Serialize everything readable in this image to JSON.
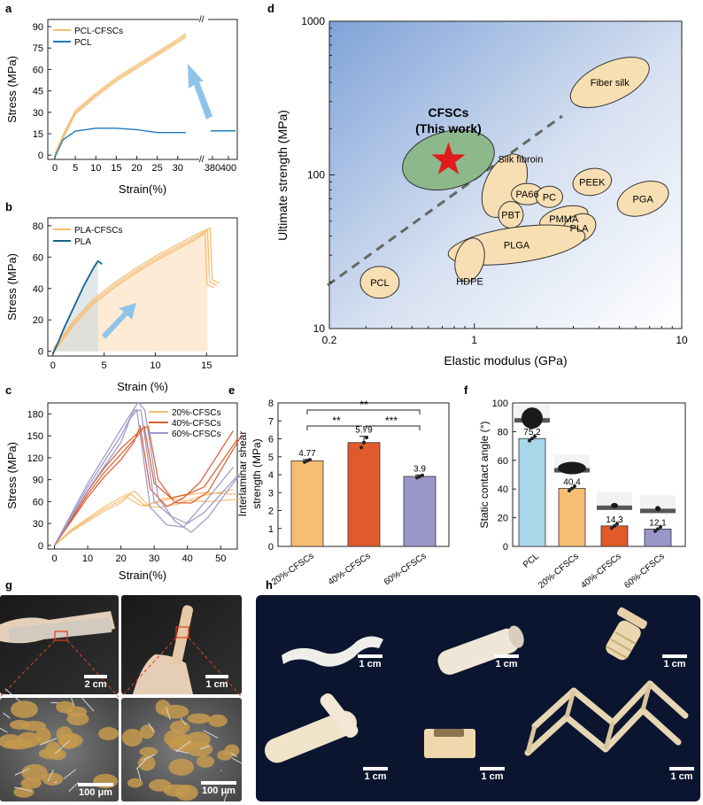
{
  "panel_letters": {
    "a": "a",
    "b": "b",
    "c": "c",
    "d": "d",
    "e": "e",
    "f": "f",
    "g": "g",
    "h": "h"
  },
  "colors": {
    "orange": "#f7bd73",
    "blue_a": "#1e7bbf",
    "blue_b": "#15668f",
    "arrow": "#8fc3ea",
    "red": "#e05a2b",
    "purple": "#9a96c8",
    "lightblue": "#aad6ea",
    "star": "#e11b1b",
    "dark_bg": "#0c1530"
  },
  "scale_bars": {
    "g1": "2 cm",
    "g2": "1 cm",
    "g3": "100 μm",
    "g4": "100 μm",
    "h": "1 cm"
  },
  "chart_data": [
    {
      "id": "a",
      "type": "line",
      "xlabel": "Strain(%)",
      "ylabel": "Stress (MPa)",
      "yticks": [
        0,
        15,
        30,
        45,
        60,
        75,
        90
      ],
      "xticks": [
        "0",
        "5",
        "10",
        "15",
        "20",
        "25",
        "30",
        "380",
        "400"
      ],
      "ylim": [
        -3,
        95
      ],
      "series": [
        {
          "name": "PCL-CFSCs",
          "color": "#f7bd73",
          "x": [
            0,
            2,
            5,
            10,
            15,
            20,
            25,
            30,
            32
          ],
          "y": [
            0,
            13,
            30,
            42,
            53,
            62,
            71,
            80,
            84
          ]
        },
        {
          "name": "PCL",
          "color": "#1e7bbf",
          "x": [
            0,
            2,
            5,
            10,
            15,
            20,
            25,
            30,
            32,
            400
          ],
          "y": [
            0,
            12,
            18,
            20,
            20,
            19,
            17,
            17,
            17,
            17
          ]
        }
      ]
    },
    {
      "id": "b",
      "type": "line",
      "xlabel": "Strain (%)",
      "ylabel": "Stress (MPa)",
      "xticks": [
        0,
        5,
        10,
        15
      ],
      "yticks": [
        0,
        20,
        40,
        60,
        80
      ],
      "xlim": [
        -0.5,
        18
      ],
      "ylim": [
        -3,
        85
      ],
      "series": [
        {
          "name": "PLA-CFSCs",
          "color": "#f7bd73",
          "x": [
            0,
            1,
            2,
            4,
            6,
            8,
            10,
            12,
            14,
            15.1,
            15.3,
            16
          ],
          "y": [
            0,
            9,
            18,
            32,
            42,
            51,
            59,
            66,
            73,
            77,
            44,
            42
          ]
        },
        {
          "name": "PLA",
          "color": "#15668f",
          "x": [
            0,
            0.5,
            1,
            2,
            3,
            4,
            4.4,
            4.8
          ],
          "y": [
            0,
            7,
            15,
            29,
            43,
            55,
            59,
            57
          ]
        }
      ]
    },
    {
      "id": "c",
      "type": "line",
      "xlabel": "Strain(%)",
      "ylabel": "Stress (MPa)",
      "xticks": [
        0,
        10,
        20,
        30,
        40,
        50
      ],
      "yticks": [
        0,
        30,
        60,
        90,
        120,
        150,
        180
      ],
      "xlim": [
        -2,
        55
      ],
      "ylim": [
        -5,
        195
      ],
      "series": [
        {
          "name": "20%-CFSCs",
          "color": "#f7bd73",
          "x": [
            0,
            5,
            10,
            15,
            20,
            23,
            27,
            32,
            38,
            45,
            55
          ],
          "y": [
            0,
            20,
            35,
            50,
            62,
            70,
            55,
            60,
            68,
            72,
            70
          ]
        },
        {
          "name": "40%-CFSCs",
          "color": "#e05a2b",
          "x": [
            0,
            5,
            10,
            15,
            20,
            25,
            27,
            30,
            35,
            40,
            45,
            55
          ],
          "y": [
            0,
            35,
            70,
            100,
            125,
            150,
            163,
            85,
            65,
            70,
            80,
            145
          ]
        },
        {
          "name": "60%-CFSCs",
          "color": "#9a96c8",
          "x": [
            0,
            5,
            10,
            15,
            20,
            24,
            26,
            30,
            35,
            40,
            45,
            55
          ],
          "y": [
            0,
            40,
            80,
            115,
            150,
            185,
            185,
            60,
            40,
            30,
            45,
            95
          ]
        }
      ]
    },
    {
      "id": "d",
      "type": "scatter",
      "xlabel": "Elastic modulus (GPa)",
      "ylabel": "Ultimate strength (MPa)",
      "xscale": "log",
      "yscale": "log",
      "xticks": [
        "0.2",
        "1",
        "10"
      ],
      "yticks": [
        "10",
        "100",
        "1000"
      ],
      "xlim": [
        0.2,
        10
      ],
      "ylim": [
        10,
        1000
      ],
      "materials": [
        {
          "name": "Fiber silk",
          "x": 4.5,
          "y": 400
        },
        {
          "name": "CFSCs\n(This work)",
          "x": 0.75,
          "y": 125
        },
        {
          "name": "Silk fibroin",
          "x": 1.4,
          "y": 85
        },
        {
          "name": "PA66",
          "x": 1.8,
          "y": 75
        },
        {
          "name": "PC",
          "x": 2.3,
          "y": 72
        },
        {
          "name": "PEEK",
          "x": 3.7,
          "y": 90
        },
        {
          "name": "PBT",
          "x": 1.5,
          "y": 55
        },
        {
          "name": "PMMA",
          "x": 2.7,
          "y": 52
        },
        {
          "name": "PGA",
          "x": 6.5,
          "y": 70
        },
        {
          "name": "PLA",
          "x": 3.2,
          "y": 45
        },
        {
          "name": "PLGA",
          "x": 1.6,
          "y": 35
        },
        {
          "name": "HDPE",
          "x": 0.95,
          "y": 28
        },
        {
          "name": "PCL",
          "x": 0.35,
          "y": 20
        }
      ],
      "this_work_title": "CFSCs",
      "this_work_sub": "(This work)"
    },
    {
      "id": "e",
      "type": "bar",
      "ylabel": "Interlaminar shear strength (MPa)",
      "categories": [
        "20%-CFSCs",
        "40%-CFSCs",
        "60%-CFSCs"
      ],
      "values": [
        4.77,
        5.79,
        3.9
      ],
      "value_labels": [
        "4.77",
        "5.79",
        "3.9"
      ],
      "colors": [
        "#f7bd73",
        "#e05a2b",
        "#9a96c8"
      ],
      "yticks": [
        0,
        1,
        2,
        3,
        4,
        5,
        6,
        7,
        8
      ],
      "ylim": [
        0,
        8
      ],
      "significance": [
        "**",
        "**",
        "***"
      ]
    },
    {
      "id": "f",
      "type": "bar",
      "ylabel": "Static contact angle (°)",
      "categories": [
        "PCL",
        "20%-CFSCs",
        "40%-CFSCs",
        "60%-CFSCs"
      ],
      "values": [
        75.2,
        40.4,
        14.3,
        12.1
      ],
      "value_labels": [
        "75.2",
        "40.4",
        "14.3",
        "12.1"
      ],
      "colors": [
        "#aad6ea",
        "#f7bd73",
        "#e05a2b",
        "#9a96c8"
      ],
      "yticks": [
        0,
        20,
        40,
        60,
        80,
        100
      ],
      "ylim": [
        0,
        100
      ]
    }
  ]
}
